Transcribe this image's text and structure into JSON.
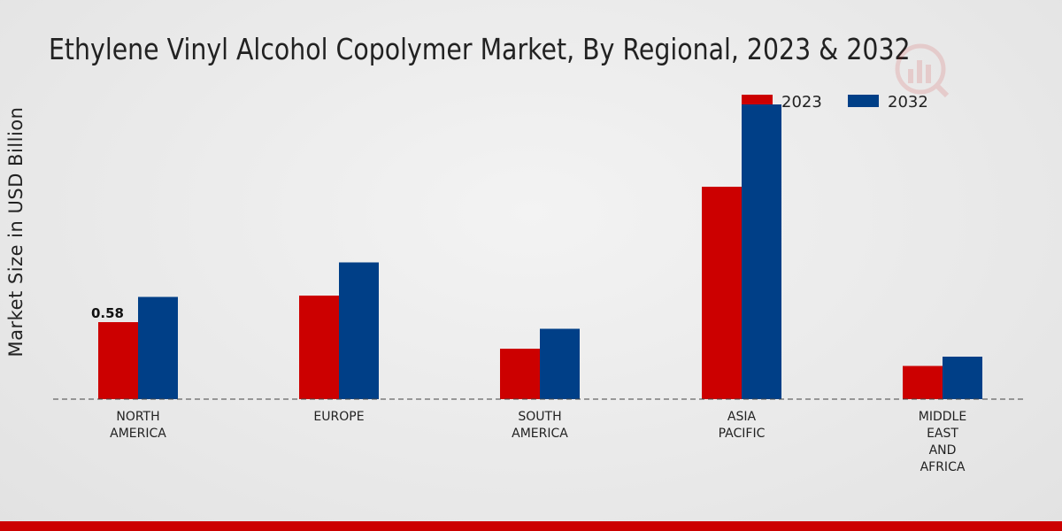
{
  "chart_data": {
    "type": "bar",
    "title": "Ethylene Vinyl Alcohol Copolymer Market, By Regional, 2023 & 2032",
    "xlabel": "",
    "ylabel": "Market Size in USD Billion",
    "categories": [
      [
        "NORTH",
        "AMERICA"
      ],
      [
        "EUROPE"
      ],
      [
        "SOUTH",
        "AMERICA"
      ],
      [
        "ASIA",
        "PACIFIC"
      ],
      [
        "MIDDLE",
        "EAST",
        "AND",
        "AFRICA"
      ]
    ],
    "series": [
      {
        "name": "2023",
        "color": "#cc0000",
        "values": [
          0.58,
          0.78,
          0.38,
          1.6,
          0.25
        ]
      },
      {
        "name": "2032",
        "color": "#003f87",
        "values": [
          0.77,
          1.03,
          0.53,
          2.22,
          0.32
        ]
      }
    ],
    "data_labels": [
      {
        "series": 0,
        "index": 0,
        "text": "0.58"
      }
    ],
    "ylim": [
      0,
      2.5
    ],
    "grid": false,
    "legend_position": "top-right"
  }
}
